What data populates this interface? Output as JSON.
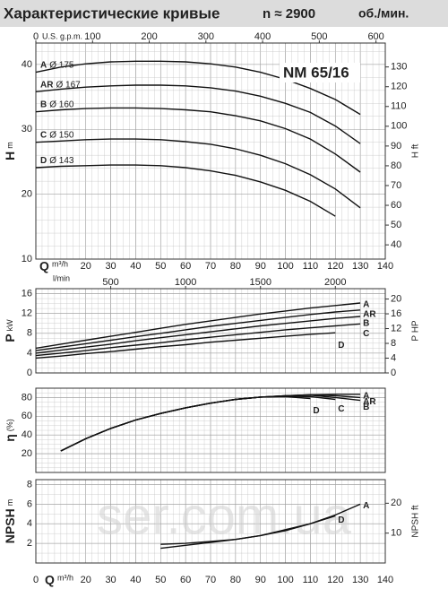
{
  "title": "Характеристические кривые",
  "speed": "n ≈ 2900",
  "speed_unit": "об./мин.",
  "model": "NM 65/16",
  "watermark": "ser.com.ua",
  "chart_data": [
    {
      "type": "line",
      "ylabel": "H",
      "yunit": "m",
      "y2label": "H ft",
      "xlabel": "Q",
      "xunit": "m³/h",
      "x2label": "U.S. g.p.m.",
      "xlim": [
        0,
        140
      ],
      "xticks": [
        20,
        30,
        40,
        50,
        60,
        70,
        80,
        90,
        100,
        110,
        120,
        130,
        140
      ],
      "x2lim": [
        0,
        616.4
      ],
      "x2ticks": [
        0,
        100,
        200,
        300,
        400,
        500,
        600
      ],
      "ylim": [
        10,
        43.3
      ],
      "yticks": [
        10,
        20,
        30,
        40
      ],
      "y2lim": [
        32.8,
        142.1
      ],
      "y2ticks": [
        40,
        50,
        60,
        70,
        80,
        90,
        100,
        110,
        120,
        130
      ],
      "grid": true,
      "x": [
        0,
        10,
        20,
        30,
        40,
        50,
        60,
        70,
        80,
        90,
        100,
        110,
        120,
        130
      ],
      "series": [
        {
          "name": "A",
          "diameter": "Ø 175",
          "color": "#111111",
          "values": [
            38.8,
            39.6,
            40.1,
            40.4,
            40.5,
            40.5,
            40.4,
            40.1,
            39.6,
            38.8,
            37.7,
            36.3,
            34.6,
            32.3
          ]
        },
        {
          "name": "AR",
          "diameter": "Ø 167",
          "color": "#111111",
          "values": [
            35.8,
            36.2,
            36.5,
            36.7,
            36.8,
            36.8,
            36.7,
            36.4,
            35.9,
            35.1,
            34.0,
            32.6,
            30.5,
            27.8
          ]
        },
        {
          "name": "B",
          "diameter": "Ø 160",
          "color": "#111111",
          "values": [
            32.7,
            33.0,
            33.2,
            33.3,
            33.3,
            33.2,
            33.0,
            32.7,
            32.1,
            31.3,
            30.1,
            28.5,
            26.2,
            23.4
          ]
        },
        {
          "name": "C",
          "diameter": "Ø 150",
          "color": "#111111",
          "values": [
            28.0,
            28.2,
            28.4,
            28.5,
            28.5,
            28.4,
            28.1,
            27.7,
            27.0,
            26.0,
            24.7,
            23.0,
            20.8,
            17.9
          ]
        },
        {
          "name": "D",
          "diameter": "Ø 143",
          "color": "#111111",
          "values": [
            24.1,
            24.3,
            24.4,
            24.5,
            24.5,
            24.4,
            24.1,
            23.6,
            22.9,
            21.9,
            20.6,
            18.9,
            16.6,
            null
          ]
        }
      ]
    },
    {
      "type": "line",
      "ylabel": "P",
      "yunit": "kW",
      "y2label": "P HP",
      "x2label": "l/min",
      "xlim": [
        0,
        140
      ],
      "x2lim": [
        0,
        2333.3
      ],
      "x2ticks": [
        500,
        1000,
        1500,
        2000
      ],
      "ylim": [
        0,
        17
      ],
      "yticks": [
        0,
        4,
        8,
        12,
        16
      ],
      "y2lim": [
        0,
        22.8
      ],
      "y2ticks": [
        0,
        4,
        8,
        12,
        16,
        20
      ],
      "grid": true,
      "x": [
        0,
        10,
        20,
        30,
        40,
        50,
        60,
        70,
        80,
        90,
        100,
        110,
        120,
        130
      ],
      "series": [
        {
          "name": "A",
          "color": "#111111",
          "values": [
            5.0,
            5.8,
            6.6,
            7.4,
            8.2,
            9.0,
            9.8,
            10.5,
            11.2,
            11.9,
            12.5,
            13.1,
            13.6,
            14.1
          ]
        },
        {
          "name": "AR",
          "color": "#111111",
          "values": [
            4.5,
            5.2,
            5.9,
            6.6,
            7.3,
            8.0,
            8.7,
            9.4,
            10.0,
            10.6,
            11.2,
            11.8,
            12.3,
            12.7
          ]
        },
        {
          "name": "B",
          "color": "#111111",
          "values": [
            4.0,
            4.6,
            5.2,
            5.8,
            6.5,
            7.1,
            7.7,
            8.3,
            8.9,
            9.5,
            10.0,
            10.5,
            11.0,
            11.4
          ]
        },
        {
          "name": "C",
          "color": "#111111",
          "values": [
            3.5,
            4.0,
            4.5,
            5.1,
            5.6,
            6.1,
            6.7,
            7.2,
            7.7,
            8.2,
            8.7,
            9.1,
            9.5,
            9.9
          ]
        },
        {
          "name": "D",
          "color": "#111111",
          "values": [
            3.0,
            3.4,
            3.9,
            4.3,
            4.8,
            5.3,
            5.7,
            6.2,
            6.6,
            7.0,
            7.4,
            7.8,
            8.1,
            null
          ]
        }
      ]
    },
    {
      "type": "line",
      "ylabel": "η",
      "yunit": "(%)",
      "xlim": [
        0,
        140
      ],
      "ylim": [
        0,
        90
      ],
      "yticks": [
        20,
        40,
        60,
        80
      ],
      "grid": true,
      "x": [
        0,
        10,
        20,
        30,
        40,
        50,
        60,
        70,
        80,
        90,
        100,
        110,
        120,
        130
      ],
      "series": [
        {
          "name": "A",
          "color": "#111111",
          "values": [
            null,
            23,
            36,
            47,
            56,
            63,
            69,
            74,
            78,
            80.5,
            82,
            83,
            83.5,
            83.5
          ]
        },
        {
          "name": "AR",
          "color": "#111111",
          "values": [
            null,
            23,
            36,
            47,
            56,
            63,
            69,
            74,
            78,
            80.5,
            82,
            83,
            82,
            80
          ]
        },
        {
          "name": "B",
          "color": "#111111",
          "values": [
            null,
            23,
            36,
            47,
            56,
            63,
            69,
            74,
            78,
            80.5,
            82,
            82.5,
            80,
            77
          ]
        },
        {
          "name": "C",
          "color": "#111111",
          "values": [
            null,
            23,
            36,
            47,
            56,
            63,
            69,
            74,
            78,
            80.5,
            81.5,
            81,
            78,
            null
          ]
        },
        {
          "name": "D",
          "color": "#111111",
          "values": [
            null,
            23,
            36,
            47,
            56,
            63,
            69,
            74,
            78,
            80.5,
            81,
            79,
            null,
            null
          ]
        }
      ]
    },
    {
      "type": "line",
      "ylabel": "NPSH",
      "yunit": "m",
      "y2label": "NPSH ft",
      "xlabel": "Q",
      "xunit": "m³/h",
      "xlim": [
        0,
        140
      ],
      "xticks": [
        0,
        20,
        30,
        40,
        50,
        60,
        70,
        80,
        90,
        100,
        110,
        120,
        130,
        140
      ],
      "ylim": [
        0,
        8.5
      ],
      "yticks": [
        2,
        4,
        6,
        8
      ],
      "y2lim": [
        0,
        27.9
      ],
      "y2ticks": [
        10,
        20
      ],
      "grid": true,
      "x": [
        50,
        60,
        70,
        80,
        90,
        100,
        110,
        120,
        130
      ],
      "series": [
        {
          "name": "A",
          "color": "#111111",
          "values": [
            1.9,
            2.0,
            2.2,
            2.4,
            2.8,
            3.3,
            4.0,
            4.9,
            6.0
          ]
        },
        {
          "name": "D",
          "color": "#111111",
          "values": [
            1.5,
            1.8,
            2.1,
            2.4,
            2.8,
            3.4,
            4.0,
            4.8,
            null
          ]
        }
      ]
    }
  ]
}
